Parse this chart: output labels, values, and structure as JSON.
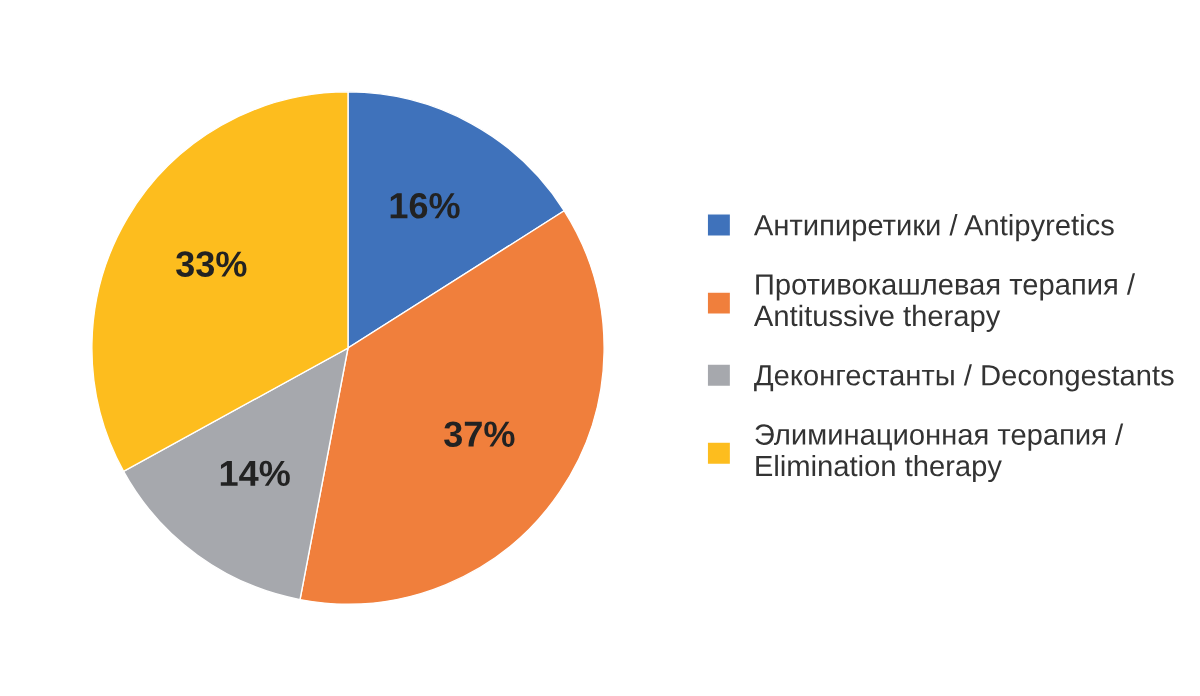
{
  "chart_data": {
    "type": "pie",
    "categories": [
      "Антипиретики / Antipyretics",
      "Противокашлевая терапия /\nAntitussive therapy",
      "Деконгестанты / Decongestants",
      "Элиминационная терапия /\nElimination therapy"
    ],
    "values": [
      16,
      37,
      14,
      33
    ],
    "value_labels": [
      "16%",
      "37%",
      "14%",
      "33%"
    ],
    "colors": [
      "#3f72bb",
      "#f07f3c",
      "#a6a8ad",
      "#fdbd1e"
    ],
    "legend": "right"
  }
}
